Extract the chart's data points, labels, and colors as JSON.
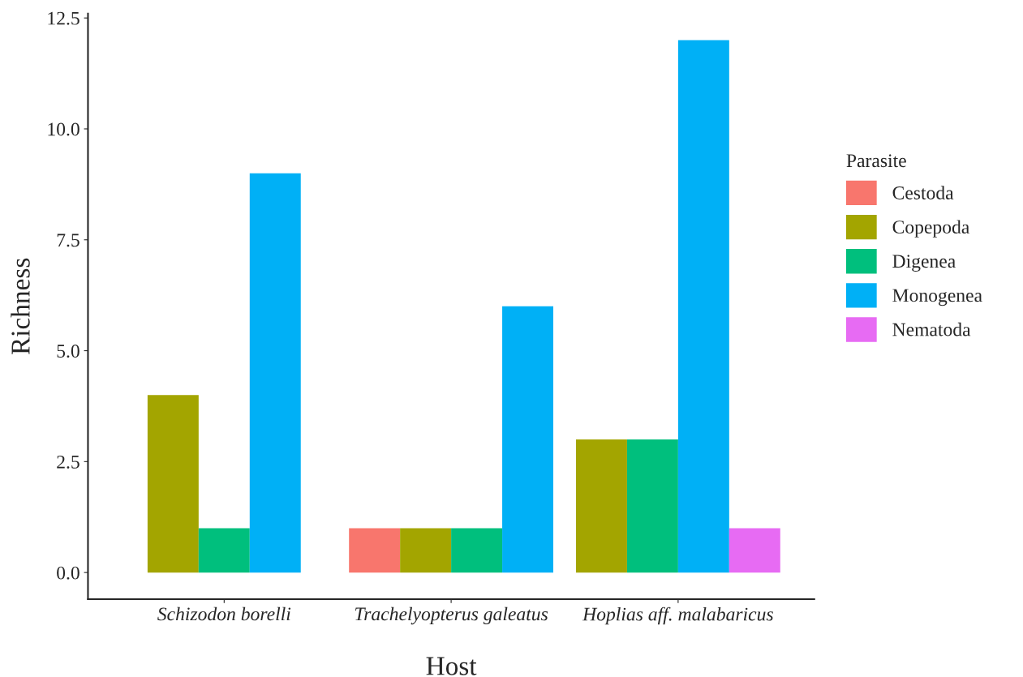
{
  "chart_data": {
    "type": "bar",
    "xlabel": "Host",
    "ylabel": "Richness",
    "legend_title": "Parasite",
    "categories": [
      "Schizodon borelli",
      "Trachelyopterus galeatus",
      "Hoplias aff. malabaricus"
    ],
    "series": [
      {
        "name": "Cestoda",
        "color": "#f8766d",
        "values": [
          null,
          1,
          null
        ]
      },
      {
        "name": "Copepoda",
        "color": "#a3a500",
        "values": [
          4,
          1,
          3
        ]
      },
      {
        "name": "Digenea",
        "color": "#00bf7d",
        "values": [
          1,
          1,
          3
        ]
      },
      {
        "name": "Monogenea",
        "color": "#00b0f6",
        "values": [
          9,
          6,
          12
        ]
      },
      {
        "name": "Nematoda",
        "color": "#e76bf3",
        "values": [
          null,
          null,
          1
        ]
      }
    ],
    "ylim": [
      -0.6,
      12.6
    ],
    "yticks": [
      {
        "value": 0,
        "label": "0.0"
      },
      2.5,
      {
        "value": 5,
        "label": "5.0"
      },
      7.5,
      {
        "value": 10,
        "label": "10.0"
      },
      12.5
    ],
    "grid": false,
    "legend": "right"
  }
}
